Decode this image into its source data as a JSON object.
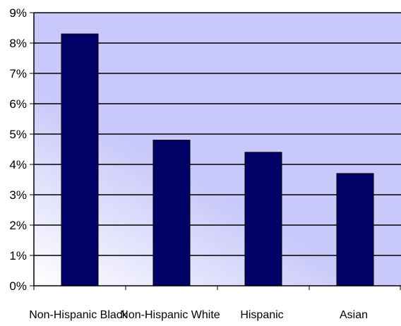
{
  "chart_data": {
    "type": "bar",
    "title": "",
    "xlabel": "",
    "ylabel": "",
    "categories": [
      "Non-Hispanic Black",
      "Non-Hispanic White",
      "Hispanic",
      "Asian"
    ],
    "values": [
      8.3,
      4.8,
      4.4,
      3.7
    ],
    "unit": "%",
    "ylim": [
      0,
      9
    ],
    "yticks": [
      "0%",
      "1%",
      "2%",
      "3%",
      "4%",
      "5%",
      "6%",
      "7%",
      "8%",
      "9%"
    ],
    "grid": true,
    "legend": "none",
    "colors": {
      "bar": "#000066",
      "plot_background": "#c8c8fa",
      "plot_background_fade": "#ffffff",
      "gridline": "#000000"
    }
  }
}
